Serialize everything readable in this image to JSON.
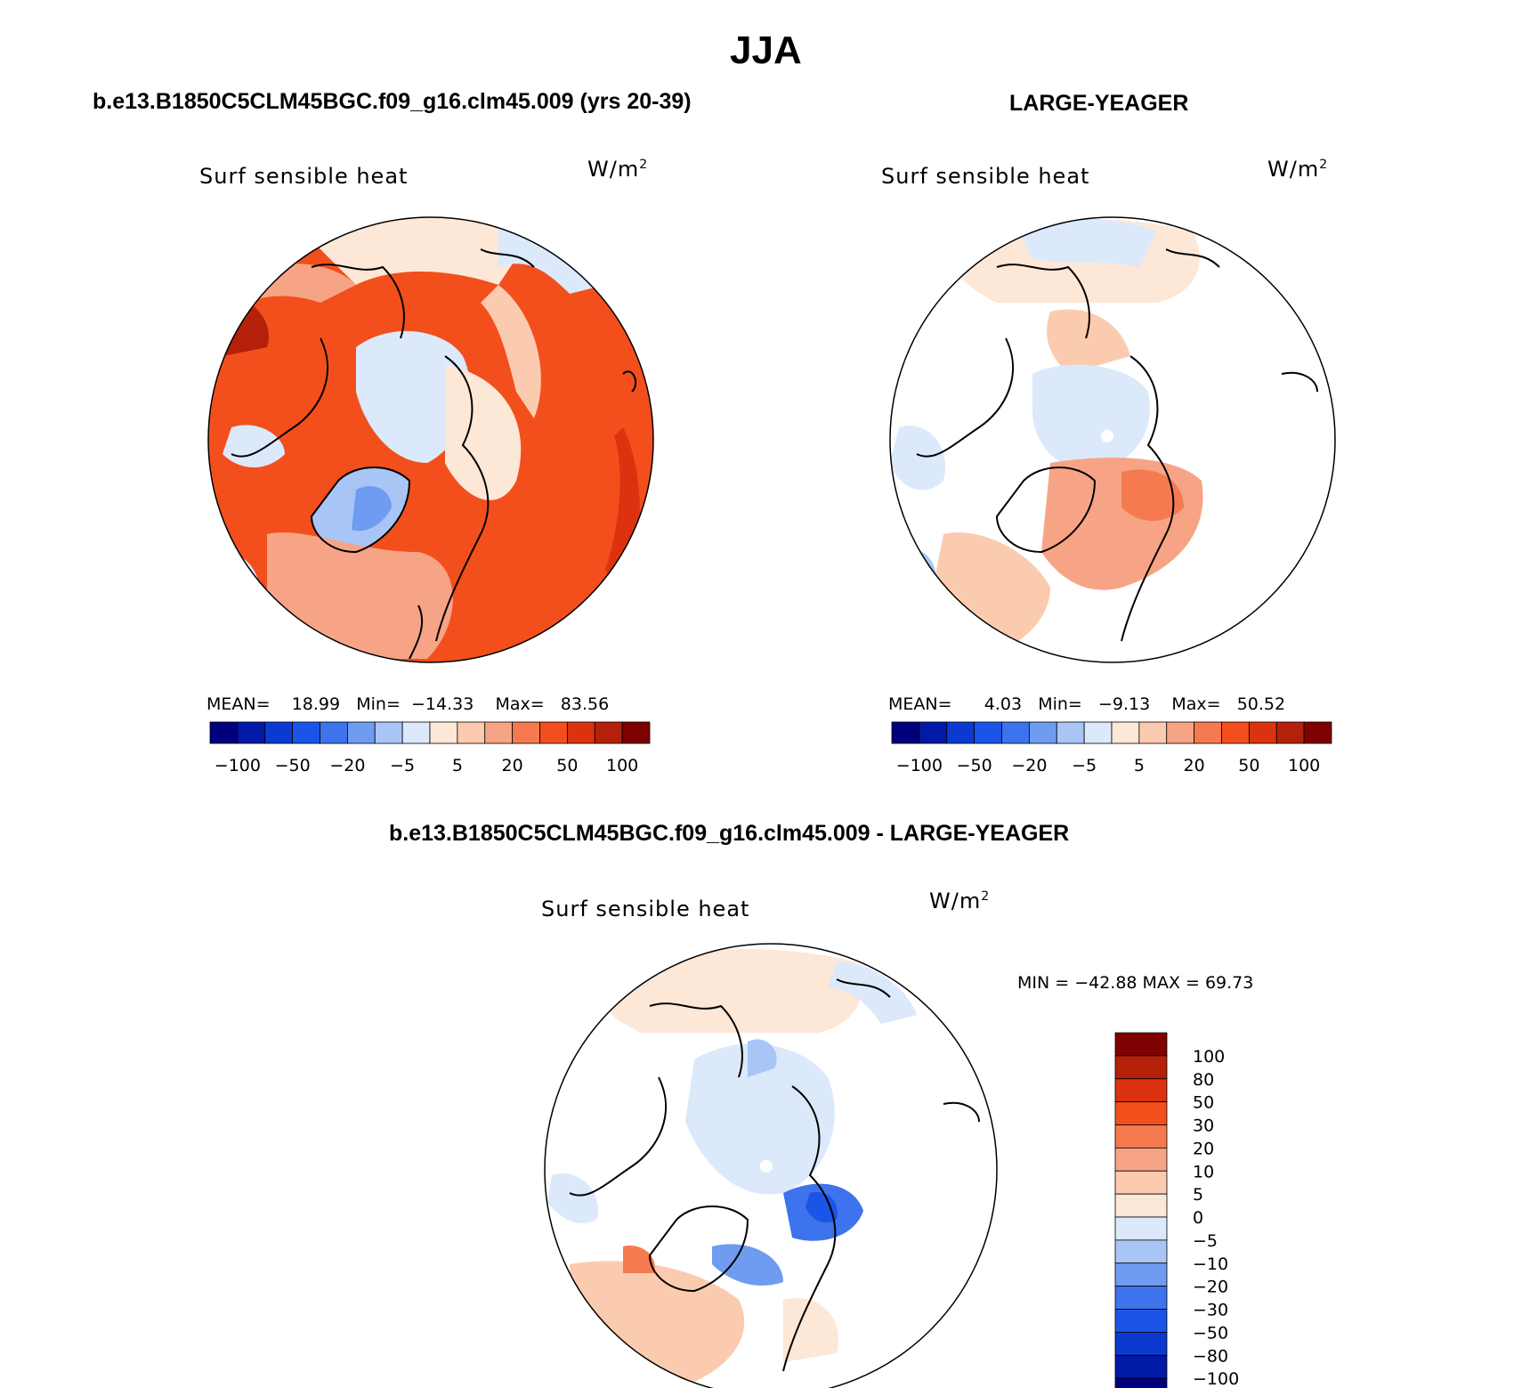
{
  "figure": {
    "title": "JJA",
    "left_case": "b.e13.B1850C5CLM45BGC.f09_g16.clm45.009 (yrs 20-39)",
    "right_case": "LARGE-YEAGER",
    "diff_title": "b.e13.B1850C5CLM45BGC.f09_g16.clm45.009 - LARGE-YEAGER"
  },
  "panels": [
    {
      "variable": "Surf  sensible  heat",
      "units_base": "W/m",
      "units_exp": "2",
      "mean_label": "MEAN=",
      "mean": "18.99",
      "min_label": "Min=",
      "min": "−14.33",
      "max_label": "Max=",
      "max": "83.56"
    },
    {
      "variable": "Surf  sensible  heat",
      "units_base": "W/m",
      "units_exp": "2",
      "mean_label": "MEAN=",
      "mean": "4.03",
      "min_label": "Min=",
      "min": "−9.13",
      "max_label": "Max=",
      "max": "50.52"
    },
    {
      "variable": "Surf  sensible  heat",
      "units_base": "W/m",
      "units_exp": "2",
      "minmax": "MIN = −42.88  MAX =   69.73"
    }
  ],
  "colorbar_h": {
    "colors": [
      "#00007f",
      "#0019a6",
      "#0a3ad0",
      "#1b55e8",
      "#3d73ec",
      "#6f9bf0",
      "#a8c5f6",
      "#dbe9fb",
      "#fde7d7",
      "#fbcbb0",
      "#f7a486",
      "#f57a50",
      "#f24f1d",
      "#dc3210",
      "#b5200a",
      "#7f0000"
    ],
    "tick_labels": [
      "−100",
      "−50",
      "−20",
      "−5",
      "5",
      "20",
      "50",
      "100"
    ]
  },
  "colorbar_v": {
    "colors": [
      "#7f0000",
      "#b5200a",
      "#dc3210",
      "#f24f1d",
      "#f57a50",
      "#f7a486",
      "#fbcbb0",
      "#fde7d7",
      "#dbe9fb",
      "#a8c5f6",
      "#6f9bf0",
      "#3d73ec",
      "#1b55e8",
      "#0a3ad0",
      "#0019a6",
      "#00007f"
    ],
    "tick_labels": [
      "100",
      "80",
      "50",
      "30",
      "20",
      "10",
      "5",
      "0",
      "−5",
      "−10",
      "−20",
      "−30",
      "−50",
      "−80",
      "−100"
    ]
  }
}
